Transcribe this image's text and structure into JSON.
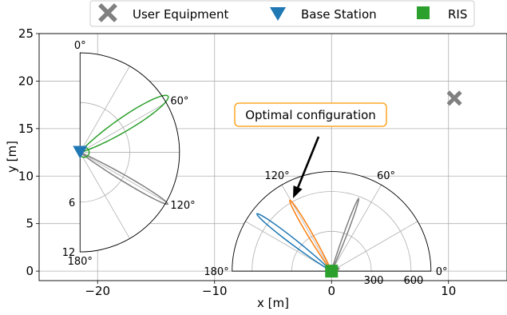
{
  "chart_data": {
    "type": "scatter",
    "xlabel": "x [m]",
    "ylabel": "y [m]",
    "xlim": [
      -25,
      15
    ],
    "ylim": [
      -1,
      25
    ],
    "xticks": [
      -20,
      -10,
      0,
      10
    ],
    "yticks": [
      0,
      5,
      10,
      15,
      20,
      25
    ],
    "grid": true,
    "legend_placement": "top-center",
    "legend": [
      {
        "label": "User Equipment",
        "marker": "x-cross",
        "color": "#808080"
      },
      {
        "label": "Base Station",
        "marker": "triangle-down",
        "color": "#1f77b4"
      },
      {
        "label": "RIS",
        "marker": "square",
        "color": "#2ca02c"
      }
    ],
    "points": [
      {
        "name": "User Equipment",
        "x": 10.5,
        "y": 18.2
      },
      {
        "name": "Base Station",
        "x": -21.5,
        "y": 12.5
      },
      {
        "name": "RIS",
        "x": 0.0,
        "y": 0.0
      }
    ],
    "annotation": {
      "text": "Optimal configuration",
      "border_color": "#ff9900"
    },
    "bs_polar": {
      "center": {
        "x": -21.5,
        "y": 12.5
      },
      "data_radius": 8.5,
      "rmax": 12,
      "ring_values": [
        6,
        12
      ],
      "ring_labels": [
        "6",
        "12"
      ],
      "angle_labels": [
        "180°",
        "120°",
        "60°",
        "0°"
      ],
      "lobes": [
        {
          "color": "#808080",
          "angle_deg": 120.5,
          "peak": 12.3,
          "width": 3.0
        },
        {
          "color": "#2ca02c",
          "angle_deg": 57.5,
          "peak": 12.6,
          "width": 6.5
        },
        {
          "color": "#2ca02c",
          "angle_deg": 90,
          "peak": 1.1,
          "width": 60
        }
      ]
    },
    "ris_polar": {
      "center": {
        "x": 0,
        "y": 0
      },
      "data_radius": 8.5,
      "rmax": 750,
      "ring_values": [
        300,
        600
      ],
      "ring_labels": [
        "300",
        "600"
      ],
      "angle_labels": [
        "180°",
        "120°",
        "60°",
        "0°"
      ],
      "lobes": [
        {
          "color": "#1f77b4",
          "angle_deg": 142.5,
          "peak": 710,
          "width": 3.0
        },
        {
          "color": "#ff7f0e",
          "angle_deg": 120.5,
          "peak": 620,
          "width": 2.8
        },
        {
          "color": "#808080",
          "angle_deg": 69.5,
          "peak": 585,
          "width": 2.0
        },
        {
          "color": "#808080",
          "angle_deg": 20,
          "peak": 60,
          "width": 12
        }
      ]
    }
  }
}
